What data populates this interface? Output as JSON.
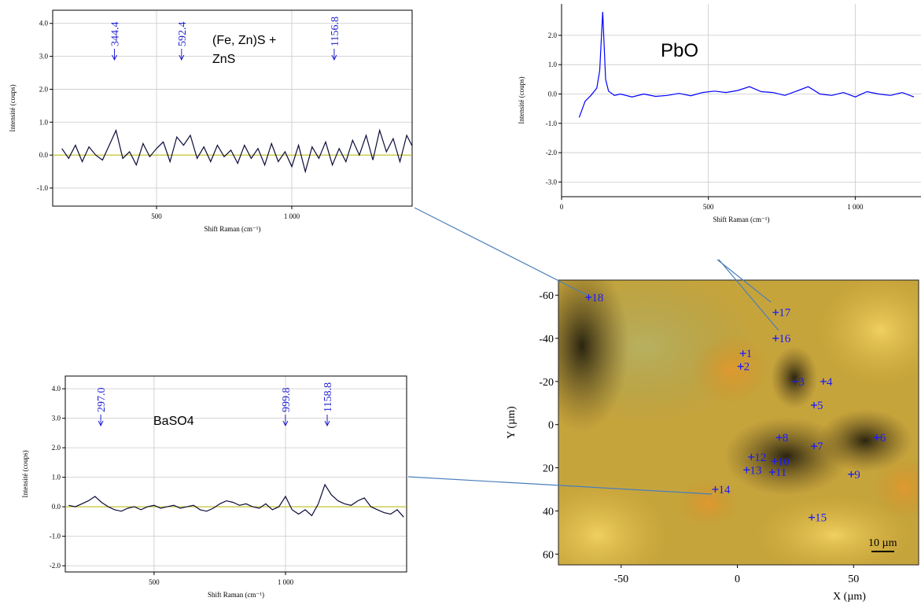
{
  "chart_data": [
    {
      "type": "line",
      "xlabel": "Shift Raman (cm⁻¹)",
      "ylabel": "Intensité (coups)",
      "annotations": [
        "(Fe, Zn)S +",
        "ZnS"
      ],
      "peaks": [
        344.4,
        592.4,
        1156.8
      ],
      "xlim": [
        116,
        1445
      ],
      "ylim": [
        -1.55,
        4.4
      ],
      "xticks": [
        500,
        {
          "value": 1000,
          "label": "1 000"
        }
      ],
      "yticks": [
        {
          "value": 4,
          "label": "4.0"
        },
        {
          "value": 3,
          "label": "3.0"
        },
        {
          "value": 2,
          "label": "2.0"
        },
        {
          "value": 1,
          "label": "1.0"
        },
        {
          "value": 0,
          "label": "0.0"
        },
        {
          "value": -1,
          "label": "-1.0"
        }
      ],
      "grid": true,
      "baseline_color": "#b5b800",
      "series": [
        {
          "color": "#0b0b3a",
          "x": [
            150,
            175,
            200,
            225,
            250,
            275,
            300,
            325,
            350,
            375,
            400,
            425,
            450,
            475,
            500,
            525,
            550,
            575,
            600,
            625,
            650,
            675,
            700,
            725,
            750,
            775,
            800,
            825,
            850,
            875,
            900,
            925,
            950,
            975,
            1000,
            1025,
            1050,
            1075,
            1100,
            1125,
            1150,
            1175,
            1200,
            1225,
            1250,
            1275,
            1300,
            1325,
            1350,
            1375,
            1400,
            1425,
            1450
          ],
          "values": [
            0.2,
            -0.1,
            0.3,
            -0.2,
            0.25,
            0.0,
            -0.15,
            0.3,
            0.75,
            -0.1,
            0.1,
            -0.3,
            0.35,
            -0.05,
            0.2,
            0.4,
            -0.2,
            0.55,
            0.3,
            0.6,
            -0.1,
            0.25,
            -0.2,
            0.3,
            -0.05,
            0.15,
            -0.25,
            0.3,
            -0.1,
            0.2,
            -0.3,
            0.35,
            -0.2,
            0.1,
            -0.35,
            0.3,
            -0.5,
            0.25,
            -0.1,
            0.4,
            -0.3,
            0.2,
            -0.2,
            0.45,
            0.0,
            0.6,
            -0.15,
            0.75,
            0.1,
            0.5,
            -0.2,
            0.6,
            0.2
          ]
        }
      ]
    },
    {
      "type": "line",
      "xlabel": "Shift Raman (cm⁻¹)",
      "ylabel": "Intensité (coups)",
      "annotations": [
        "PbO"
      ],
      "peaks": [],
      "xlim": [
        0,
        1224
      ],
      "ylim": [
        -3.5,
        3.07
      ],
      "xticks": [
        0,
        500,
        {
          "value": 1000,
          "label": "1 000"
        }
      ],
      "yticks": [
        {
          "value": 2,
          "label": "2.0"
        },
        {
          "value": 1,
          "label": "1.0"
        },
        {
          "value": 0,
          "label": "0.0"
        },
        {
          "value": -1,
          "label": "-1.0"
        },
        {
          "value": -2,
          "label": "-2.0"
        },
        {
          "value": -3,
          "label": "-3.0"
        }
      ],
      "grid": true,
      "series": [
        {
          "color": "#0000ff",
          "x": [
            60,
            80,
            100,
            120,
            130,
            140,
            150,
            160,
            180,
            200,
            240,
            280,
            320,
            360,
            400,
            440,
            480,
            520,
            560,
            600,
            640,
            680,
            720,
            760,
            800,
            840,
            880,
            920,
            960,
            1000,
            1040,
            1080,
            1120,
            1160,
            1200
          ],
          "values": [
            -0.8,
            -0.25,
            -0.05,
            0.2,
            0.8,
            2.8,
            0.5,
            0.1,
            -0.05,
            0.0,
            -0.1,
            0.0,
            -0.08,
            -0.05,
            0.02,
            -0.06,
            0.05,
            0.1,
            0.05,
            0.12,
            0.25,
            0.08,
            0.05,
            -0.05,
            0.1,
            0.25,
            0.0,
            -0.05,
            0.05,
            -0.1,
            0.08,
            0.0,
            -0.05,
            0.05,
            -0.1
          ]
        }
      ]
    },
    {
      "type": "line",
      "xlabel": "Shift Raman (cm⁻¹)",
      "ylabel": "Intensité (coups)",
      "annotations": [
        "BaSO4"
      ],
      "peaks": [
        {
          "value": 297,
          "label": "297.0"
        },
        999.8,
        1158.8
      ],
      "xlim": [
        162,
        1461
      ],
      "ylim": [
        -2.21,
        4.43
      ],
      "xticks": [
        500,
        {
          "value": 1000,
          "label": "1 000"
        }
      ],
      "yticks": [
        {
          "value": 4,
          "label": "4.0"
        },
        {
          "value": 3,
          "label": "3.0"
        },
        {
          "value": 2,
          "label": "2.0"
        },
        {
          "value": 1,
          "label": "1.0"
        },
        {
          "value": 0,
          "label": "0.0"
        },
        {
          "value": -1,
          "label": "-1.0"
        },
        {
          "value": -2,
          "label": "-2.0"
        }
      ],
      "grid": true,
      "baseline_color": "#b5b800",
      "series": [
        {
          "color": "#0b0b3a",
          "x": [
            175,
            200,
            225,
            250,
            275,
            300,
            325,
            350,
            375,
            400,
            425,
            450,
            475,
            500,
            525,
            550,
            575,
            600,
            625,
            650,
            675,
            700,
            725,
            750,
            775,
            800,
            825,
            850,
            875,
            900,
            925,
            950,
            975,
            1000,
            1025,
            1050,
            1075,
            1100,
            1125,
            1150,
            1175,
            1200,
            1225,
            1250,
            1275,
            1300,
            1325,
            1350,
            1375,
            1400,
            1425,
            1450
          ],
          "values": [
            0.05,
            0.0,
            0.1,
            0.2,
            0.35,
            0.15,
            0.0,
            -0.1,
            -0.15,
            -0.05,
            0.0,
            -0.1,
            0.0,
            0.05,
            -0.05,
            0.0,
            0.05,
            -0.05,
            0.0,
            0.05,
            -0.1,
            -0.15,
            -0.05,
            0.1,
            0.2,
            0.15,
            0.05,
            0.1,
            0.0,
            -0.05,
            0.1,
            -0.1,
            0.0,
            0.35,
            -0.1,
            -0.25,
            -0.1,
            -0.3,
            0.1,
            0.75,
            0.4,
            0.2,
            0.1,
            0.05,
            0.2,
            0.3,
            0.0,
            -0.1,
            -0.2,
            -0.25,
            -0.1,
            -0.35
          ]
        }
      ]
    },
    {
      "type": "scatter",
      "xlabel": "X (µm)",
      "ylabel": "Y (µm)",
      "scale_bar_label": "10 µm",
      "xlim": [
        -77,
        78
      ],
      "ylim": [
        -67,
        65
      ],
      "xticks": [
        -50,
        0,
        50
      ],
      "yticks": [
        -60,
        -40,
        -20,
        0,
        20,
        40,
        60
      ],
      "color": "#1a1aff",
      "labels": [
        "18",
        "17",
        "16",
        "1",
        "2",
        "3",
        "4",
        "5",
        "6",
        "7",
        "8",
        "12",
        "10",
        "13",
        "11",
        "9",
        "14",
        "15"
      ],
      "x": [
        -64,
        16.5,
        16.5,
        2.4,
        1.4,
        25,
        37,
        33,
        60,
        33,
        18,
        6,
        16,
        4,
        15,
        49,
        -9.5,
        32
      ],
      "y": [
        -59,
        -52,
        -40,
        -33,
        -27,
        -20,
        -20,
        -9,
        6,
        10,
        6,
        15,
        17,
        21,
        22,
        23,
        30,
        43
      ]
    }
  ]
}
